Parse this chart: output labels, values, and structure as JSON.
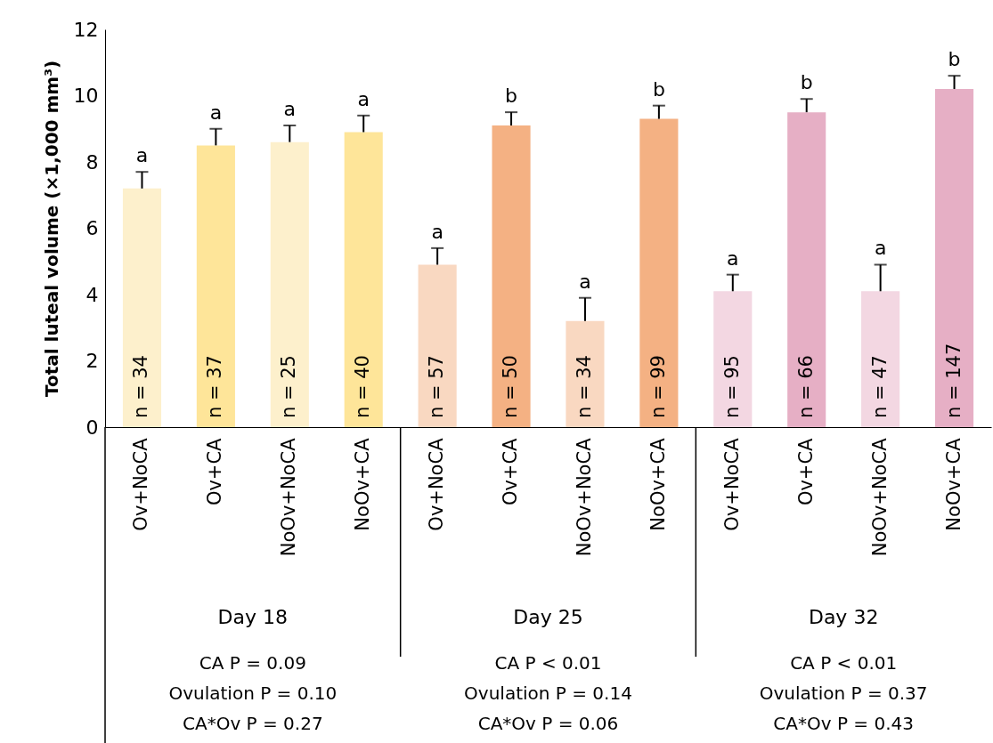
{
  "chart_data": {
    "type": "bar",
    "ylabel": "Total luteal volume (×1,000 mm³)",
    "categories": [
      "Ov+NoCA",
      "Ov+CA",
      "NoOv+NoCA",
      "NoOv+CA",
      "Ov+NoCA",
      "Ov+CA",
      "NoOv+NoCA",
      "NoOv+CA",
      "Ov+NoCA",
      "Ov+CA",
      "NoOv+NoCA",
      "NoOv+CA"
    ],
    "values": [
      7.2,
      8.5,
      8.6,
      8.9,
      4.9,
      9.1,
      3.2,
      9.3,
      4.1,
      9.5,
      4.1,
      10.2
    ],
    "colors": [
      "#fdf0cc",
      "#fee599",
      "#fdf0cc",
      "#fee599",
      "#f9d8c1",
      "#f4b183",
      "#f9d8c1",
      "#f4b183",
      "#f3d7e2",
      "#e6afc5",
      "#f3d7e2",
      "#e6afc5"
    ],
    "errors": [
      [
        7.2,
        7.7
      ],
      [
        8.5,
        9.0
      ],
      [
        8.6,
        9.1
      ],
      [
        8.9,
        9.4
      ],
      [
        4.9,
        5.4
      ],
      [
        9.1,
        9.5
      ],
      [
        3.2,
        3.9
      ],
      [
        9.3,
        9.7
      ],
      [
        4.1,
        4.6
      ],
      [
        9.5,
        9.9
      ],
      [
        4.1,
        4.9
      ],
      [
        10.2,
        10.6
      ]
    ],
    "ylim": [
      0,
      12
    ],
    "yticks": [
      0,
      2,
      4,
      6,
      8,
      10,
      12
    ],
    "annotations": [
      "a",
      "a",
      "a",
      "a",
      "a",
      "b",
      "a",
      "b",
      "a",
      "b",
      "a",
      "b",
      "n = 34",
      "n = 37",
      "n = 25",
      "n = 40",
      "n = 57",
      "n = 50",
      "n = 34",
      "n = 99",
      "n = 95",
      "n = 66",
      "n = 47",
      "n = 147",
      "Day 18",
      "CA P = 0.09",
      "Ovulation P = 0.10",
      "CA*Ov P = 0.27",
      "Day 25",
      "CA P < 0.01",
      "Ovulation P = 0.14",
      "CA*Ov P = 0.06",
      "Day 32",
      "CA P < 0.01",
      "Ovulation P = 0.37",
      "CA*Ov P = 0.43"
    ],
    "grid": false
  }
}
